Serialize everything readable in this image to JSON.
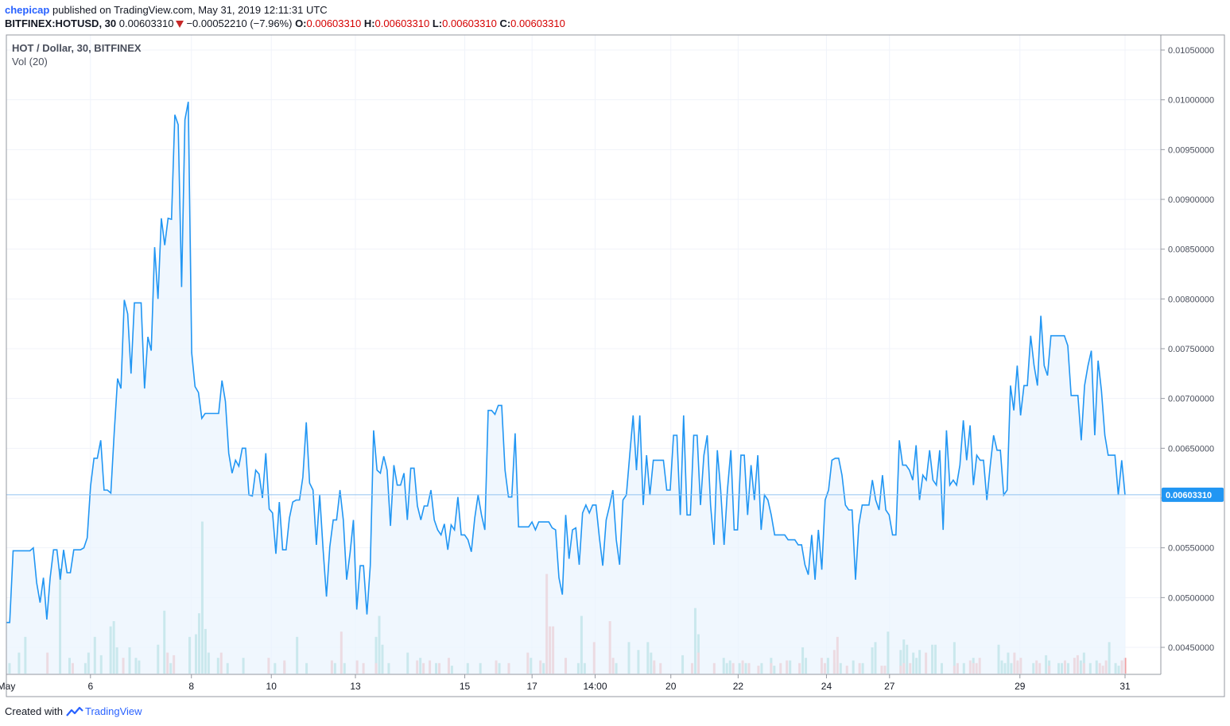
{
  "header": {
    "user": "chepicap",
    "published_text": "published on TradingView.com, May 31, 2019 12:11:31 UTC",
    "symbol": "BITFINEX:HOTUSD, 30",
    "last": "0.00603310",
    "change": "−0.00052210 (−7.96%)",
    "o_label": "O:",
    "o_value": "0.00603310",
    "h_label": "H:",
    "h_value": "0.00603310",
    "l_label": "L:",
    "l_value": "0.00603310",
    "c_label": "C:",
    "c_value": "0.00603310"
  },
  "legend": {
    "title": "HOT / Dollar, 30, BITFINEX",
    "volume": "Vol (20)"
  },
  "footer": {
    "created_with": "Created with",
    "brand": "TradingView"
  },
  "colors": {
    "line": "#2196f3",
    "area": "#eaf4fd",
    "vol_up": "#7fcdc5",
    "vol_down": "#f0a0a2",
    "grid": "#f0f3fa",
    "price_badge": "#2196f3"
  },
  "chart_data": {
    "type": "area",
    "title": "HOT / Dollar, 30, BITFINEX",
    "y_ticks": [
      "0.01050000",
      "0.01000000",
      "0.00950000",
      "0.00900000",
      "0.00850000",
      "0.00800000",
      "0.00750000",
      "0.00700000",
      "0.00650000",
      "0.00600000",
      "0.00550000",
      "0.00500000",
      "0.00450000"
    ],
    "ylim": [
      0.0042,
      0.0107
    ],
    "x_ticks": [
      {
        "label": "May",
        "x": 0
      },
      {
        "label": "6",
        "x": 20
      },
      {
        "label": "8",
        "x": 44
      },
      {
        "label": "10",
        "x": 63
      },
      {
        "label": "13",
        "x": 83
      },
      {
        "label": "15",
        "x": 109
      },
      {
        "label": "17",
        "x": 125
      },
      {
        "label": "14:00",
        "x": 140
      },
      {
        "label": "20",
        "x": 158
      },
      {
        "label": "22",
        "x": 174
      },
      {
        "label": "24",
        "x": 195
      },
      {
        "label": "27",
        "x": 210
      },
      {
        "label": "29",
        "x": 241
      },
      {
        "label": "31",
        "x": 266
      }
    ],
    "current_price": "0.00603310",
    "close": [
      0.00475,
      0.00475,
      0.00547,
      0.00547,
      0.00547,
      0.00547,
      0.00547,
      0.00547,
      0.0055,
      0.00515,
      0.00495,
      0.0052,
      0.00478,
      0.0052,
      0.00548,
      0.00548,
      0.00518,
      0.00548,
      0.00525,
      0.00525,
      0.00548,
      0.00548,
      0.00548,
      0.0055,
      0.0056,
      0.00612,
      0.0064,
      0.0064,
      0.00658,
      0.00608,
      0.00608,
      0.00605,
      0.00665,
      0.0072,
      0.0071,
      0.00799,
      0.00785,
      0.00725,
      0.00796,
      0.00796,
      0.00796,
      0.0071,
      0.00762,
      0.00748,
      0.00852,
      0.008,
      0.00881,
      0.00854,
      0.00881,
      0.0088,
      0.00985,
      0.00975,
      0.00812,
      0.0098,
      0.00998,
      0.00746,
      0.00712,
      0.00706,
      0.0068,
      0.00685,
      0.00685,
      0.00685,
      0.00685,
      0.00685,
      0.00718,
      0.00697,
      0.00645,
      0.00625,
      0.00638,
      0.00632,
      0.0065,
      0.0065,
      0.00603,
      0.00602,
      0.00628,
      0.00624,
      0.006,
      0.00645,
      0.00589,
      0.00585,
      0.00544,
      0.00596,
      0.00548,
      0.00548,
      0.0058,
      0.00596,
      0.00598,
      0.00598,
      0.00621,
      0.00676,
      0.00615,
      0.00608,
      0.00553,
      0.00603,
      0.00548,
      0.00501,
      0.00551,
      0.00578,
      0.00578,
      0.00608,
      0.00578,
      0.00518,
      0.00545,
      0.00578,
      0.00488,
      0.00532,
      0.00532,
      0.00483,
      0.00532,
      0.00668,
      0.00628,
      0.00625,
      0.00642,
      0.00628,
      0.00572,
      0.00633,
      0.00613,
      0.00613,
      0.00625,
      0.00578,
      0.0063,
      0.0063,
      0.00592,
      0.00578,
      0.00592,
      0.00592,
      0.00608,
      0.00578,
      0.00568,
      0.00563,
      0.00574,
      0.00548,
      0.00573,
      0.00568,
      0.00601,
      0.00563,
      0.00563,
      0.00558,
      0.00546,
      0.0058,
      0.00603,
      0.00583,
      0.00568,
      0.00688,
      0.00688,
      0.00684,
      0.00693,
      0.00693,
      0.00628,
      0.00601,
      0.00601,
      0.00665,
      0.00571,
      0.00571,
      0.00571,
      0.00571,
      0.00576,
      0.00568,
      0.00576,
      0.00576,
      0.00576,
      0.00576,
      0.0057,
      0.00568,
      0.0052,
      0.00503,
      0.00583,
      0.00539,
      0.00568,
      0.0057,
      0.00533,
      0.00585,
      0.00593,
      0.00585,
      0.00593,
      0.00593,
      0.0056,
      0.00532,
      0.00578,
      0.00592,
      0.00608,
      0.00558,
      0.00533,
      0.00598,
      0.00603,
      0.00643,
      0.00683,
      0.00628,
      0.00683,
      0.00593,
      0.00643,
      0.00603,
      0.00638,
      0.00638,
      0.00638,
      0.00638,
      0.00608,
      0.00608,
      0.00663,
      0.00663,
      0.00583,
      0.00683,
      0.00583,
      0.00583,
      0.00663,
      0.00663,
      0.00593,
      0.00643,
      0.00663,
      0.00593,
      0.00553,
      0.00648,
      0.00608,
      0.00553,
      0.00608,
      0.00648,
      0.00568,
      0.00568,
      0.00643,
      0.00643,
      0.00583,
      0.00633,
      0.00598,
      0.00643,
      0.00568,
      0.00603,
      0.00598,
      0.00583,
      0.00563,
      0.00563,
      0.00563,
      0.00563,
      0.00558,
      0.00558,
      0.00558,
      0.00553,
      0.00553,
      0.00533,
      0.00523,
      0.00563,
      0.00518,
      0.00568,
      0.00528,
      0.00598,
      0.00608,
      0.00638,
      0.0064,
      0.0064,
      0.00623,
      0.00593,
      0.00588,
      0.00588,
      0.00518,
      0.00573,
      0.00593,
      0.00593,
      0.00593,
      0.00618,
      0.00598,
      0.00588,
      0.00623,
      0.00588,
      0.00583,
      0.00563,
      0.00563,
      0.00658,
      0.00633,
      0.00633,
      0.00628,
      0.00618,
      0.00653,
      0.00598,
      0.00623,
      0.00618,
      0.00648,
      0.00618,
      0.00613,
      0.00648,
      0.00568,
      0.00668,
      0.00613,
      0.00618,
      0.00613,
      0.00633,
      0.00678,
      0.00638,
      0.00673,
      0.00613,
      0.00643,
      0.00638,
      0.00638,
      0.00598,
      0.00633,
      0.00663,
      0.00648,
      0.00648,
      0.00603,
      0.00608,
      0.00713,
      0.00688,
      0.00733,
      0.00683,
      0.00713,
      0.00713,
      0.00763,
      0.00733,
      0.00713,
      0.00783,
      0.00733,
      0.00723,
      0.00763,
      0.00763,
      0.00763,
      0.00763,
      0.00763,
      0.00753,
      0.00703,
      0.00703,
      0.00703,
      0.00658,
      0.00713,
      0.00733,
      0.00748,
      0.00663,
      0.00738,
      0.00708,
      0.00663,
      0.00643,
      0.00643,
      0.00643,
      0.00603,
      0.00638,
      0.00603
    ],
    "volume_up": [
      [
        1,
        4
      ],
      [
        4,
        8
      ],
      [
        6,
        14
      ],
      [
        17,
        40
      ],
      [
        20,
        6
      ],
      [
        25,
        4
      ],
      [
        26,
        8
      ],
      [
        28,
        14
      ],
      [
        30,
        7
      ],
      [
        33,
        18
      ],
      [
        34,
        20
      ],
      [
        35,
        10
      ],
      [
        39,
        10
      ],
      [
        41,
        6
      ],
      [
        42,
        5
      ],
      [
        48,
        11
      ],
      [
        50,
        24
      ],
      [
        52,
        4
      ],
      [
        58,
        14
      ],
      [
        60,
        15
      ],
      [
        61,
        23
      ],
      [
        62,
        58
      ],
      [
        63,
        17
      ],
      [
        64,
        8
      ],
      [
        67,
        6
      ],
      [
        70,
        4
      ],
      [
        75,
        6
      ],
      [
        85,
        4
      ],
      [
        88,
        4
      ],
      [
        92,
        14
      ],
      [
        95,
        4
      ],
      [
        104,
        4
      ],
      [
        107,
        4
      ],
      [
        117,
        14
      ],
      [
        118,
        22
      ],
      [
        119,
        11
      ],
      [
        121,
        4
      ],
      [
        127,
        8
      ],
      [
        131,
        6
      ],
      [
        136,
        4
      ],
      [
        141,
        3
      ],
      [
        146,
        4
      ],
      [
        150,
        4
      ],
      [
        156,
        4
      ],
      [
        166,
        6
      ],
      [
        170,
        4
      ],
      [
        181,
        4
      ],
      [
        182,
        22
      ],
      [
        183,
        4
      ],
      [
        193,
        4
      ],
      [
        197,
        12
      ],
      [
        200,
        9
      ],
      [
        203,
        12
      ],
      [
        204,
        8
      ],
      [
        205,
        3
      ],
      [
        214,
        7
      ],
      [
        218,
        25
      ],
      [
        219,
        15
      ],
      [
        227,
        6
      ],
      [
        228,
        4
      ],
      [
        229,
        5
      ],
      [
        232,
        4
      ],
      [
        234,
        4
      ],
      [
        239,
        4
      ],
      [
        242,
        6
      ],
      [
        243,
        3
      ],
      [
        248,
        5
      ],
      [
        252,
        10
      ],
      [
        253,
        6
      ],
      [
        260,
        6
      ],
      [
        262,
        4
      ],
      [
        264,
        4
      ],
      [
        268,
        5
      ],
      [
        271,
        4
      ],
      [
        274,
        10
      ],
      [
        275,
        12
      ],
      [
        279,
        16
      ],
      [
        283,
        9
      ],
      [
        284,
        13
      ],
      [
        285,
        11
      ],
      [
        287,
        8
      ],
      [
        288,
        6
      ],
      [
        289,
        9
      ],
      [
        293,
        11
      ],
      [
        294,
        11
      ],
      [
        296,
        4
      ],
      [
        300,
        12
      ],
      [
        303,
        4
      ],
      [
        306,
        6
      ],
      [
        314,
        11
      ],
      [
        315,
        5
      ],
      [
        316,
        4
      ],
      [
        317,
        8
      ],
      [
        318,
        4
      ],
      [
        320,
        4
      ],
      [
        325,
        4
      ],
      [
        329,
        7
      ],
      [
        330,
        5
      ],
      [
        333,
        4
      ],
      [
        334,
        4
      ],
      [
        336,
        4
      ],
      [
        340,
        5
      ],
      [
        341,
        8
      ],
      [
        343,
        4
      ],
      [
        345,
        5
      ],
      [
        349,
        12
      ],
      [
        351,
        4
      ],
      [
        352,
        3
      ]
    ],
    "volume_down": [
      [
        13,
        8
      ],
      [
        21,
        4
      ],
      [
        37,
        6
      ],
      [
        51,
        8
      ],
      [
        53,
        7
      ],
      [
        68,
        8
      ],
      [
        83,
        6
      ],
      [
        88,
        5
      ],
      [
        103,
        5
      ],
      [
        106,
        16
      ],
      [
        111,
        5
      ],
      [
        113,
        4
      ],
      [
        117,
        4
      ],
      [
        130,
        5
      ],
      [
        132,
        4
      ],
      [
        134,
        5
      ],
      [
        137,
        4
      ],
      [
        140,
        6
      ],
      [
        155,
        5
      ],
      [
        159,
        4
      ],
      [
        165,
        8
      ],
      [
        169,
        5
      ],
      [
        171,
        38
      ],
      [
        172,
        18
      ],
      [
        173,
        18
      ],
      [
        177,
        6
      ],
      [
        186,
        12
      ],
      [
        191,
        20
      ],
      [
        192,
        6
      ],
      [
        205,
        5
      ],
      [
        207,
        4
      ],
      [
        217,
        4
      ],
      [
        219,
        8
      ],
      [
        224,
        4
      ],
      [
        230,
        4
      ],
      [
        233,
        5
      ],
      [
        235,
        4
      ],
      [
        238,
        3
      ],
      [
        242,
        4
      ],
      [
        245,
        4
      ],
      [
        247,
        5
      ],
      [
        251,
        4
      ],
      [
        258,
        6
      ],
      [
        259,
        4
      ],
      [
        262,
        9
      ],
      [
        263,
        14
      ],
      [
        266,
        3
      ],
      [
        270,
        4
      ],
      [
        277,
        3
      ],
      [
        278,
        3
      ],
      [
        283,
        3
      ],
      [
        284,
        4
      ],
      [
        286,
        4
      ],
      [
        291,
        8
      ],
      [
        300,
        3
      ],
      [
        301,
        4
      ],
      [
        305,
        5
      ],
      [
        306,
        4
      ],
      [
        307,
        4
      ],
      [
        308,
        6
      ],
      [
        319,
        8
      ],
      [
        320,
        5
      ],
      [
        321,
        6
      ],
      [
        326,
        5
      ],
      [
        327,
        4
      ],
      [
        330,
        3
      ],
      [
        335,
        5
      ],
      [
        338,
        6
      ],
      [
        339,
        7
      ],
      [
        341,
        4
      ],
      [
        346,
        4
      ],
      [
        347,
        3
      ],
      [
        348,
        5
      ],
      [
        353,
        5
      ],
      [
        354,
        6
      ]
    ]
  }
}
